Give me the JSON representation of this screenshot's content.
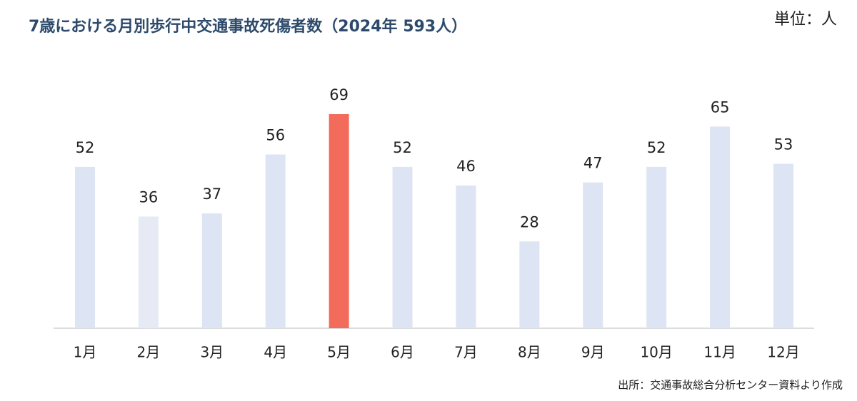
{
  "chart_data": {
    "type": "bar",
    "title": "7歳における月別歩行中交通事故死傷者数（2024年 593人）",
    "unit": "単位：人",
    "source": "出所：交通事故総合分析センター資料より作成",
    "categories": [
      "1月",
      "2月",
      "3月",
      "4月",
      "5月",
      "6月",
      "7月",
      "8月",
      "9月",
      "10月",
      "11月",
      "12月"
    ],
    "values": [
      52,
      36,
      37,
      56,
      69,
      52,
      46,
      28,
      47,
      52,
      65,
      53
    ],
    "colors": [
      "#dde4f3",
      "#e6eaf5",
      "#dde4f3",
      "#dde4f3",
      "#f26b5b",
      "#dde4f3",
      "#dde4f3",
      "#dde4f3",
      "#dde4f3",
      "#dde4f3",
      "#dde4f3",
      "#dde4f3"
    ]
  }
}
